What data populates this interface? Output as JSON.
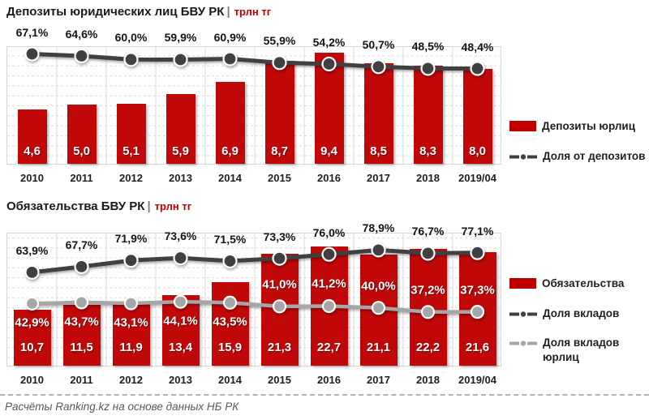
{
  "ui": {
    "title_separator": "|",
    "colors": {
      "bar_red": "#c10808",
      "legend_swatch_red": "#c00000",
      "line_dark": "#404040",
      "line_gray": "#a6a6a6",
      "unit_red": "#c00000",
      "text_dark": "#1a1a1a",
      "footer_gray": "#555a60"
    }
  },
  "chart_data": [
    {
      "type": "bar",
      "title": "Депозиты юридических лиц БВУ РК",
      "unit": "трлн тг",
      "legend_position": "right",
      "grid": true,
      "categories": [
        "2010",
        "2011",
        "2012",
        "2013",
        "2014",
        "2015",
        "2016",
        "2017",
        "2018",
        "2019/04"
      ],
      "bar_axis": {
        "min": 0,
        "max": 10
      },
      "bar_series": {
        "name": "Депозиты юрлиц",
        "color": "#c10808",
        "values": [
          4.6,
          5.0,
          5.1,
          5.9,
          6.9,
          8.7,
          9.4,
          8.5,
          8.3,
          8.0
        ],
        "labels": [
          "4,6",
          "5,0",
          "5,1",
          "5,9",
          "6,9",
          "8,7",
          "9,4",
          "8,5",
          "8,3",
          "8,0"
        ]
      },
      "line_series": [
        {
          "name": "Доля от депозитов",
          "color": "#404040",
          "marker_r": 8,
          "stroke_w": 5,
          "axis": {
            "min": -76,
            "max": 76
          },
          "label_style": "dark",
          "values": [
            67.1,
            64.6,
            60.0,
            59.9,
            60.9,
            55.9,
            54.2,
            50.7,
            48.5,
            48.4
          ],
          "labels": [
            "67,1%",
            "64,6%",
            "60,0%",
            "59,9%",
            "60,9%",
            "55,9%",
            "54,2%",
            "50,7%",
            "48,5%",
            "48,4%"
          ]
        }
      ]
    },
    {
      "type": "bar",
      "title": "Обязательства БВУ РК",
      "unit": "трлн тг",
      "legend_position": "right",
      "grid": true,
      "categories": [
        "2010",
        "2011",
        "2012",
        "2013",
        "2014",
        "2015",
        "2016",
        "2017",
        "2018",
        "2019/04"
      ],
      "bar_axis": {
        "min": 0,
        "max": 25.4
      },
      "bar_series": {
        "name": "Обязательства",
        "color": "#c10808",
        "values": [
          10.7,
          11.5,
          11.9,
          13.4,
          15.9,
          21.3,
          22.7,
          21.1,
          22.2,
          21.6
        ],
        "labels": [
          "10,7",
          "11,5",
          "11,9",
          "13,4",
          "15,9",
          "21,3",
          "22,7",
          "21,1",
          "22,2",
          "21,6"
        ]
      },
      "line_series": [
        {
          "name": "Доля вкладов",
          "color": "#404040",
          "marker_r": 8,
          "stroke_w": 5,
          "axis": {
            "min": 0,
            "max": 90
          },
          "label_style": "dark",
          "values": [
            63.9,
            67.7,
            71.9,
            73.6,
            71.5,
            73.3,
            76.0,
            78.9,
            76.7,
            77.1
          ],
          "labels": [
            "63,9%",
            "67,7%",
            "71,9%",
            "73,6%",
            "71,5%",
            "73,3%",
            "76,0%",
            "78,9%",
            "76,7%",
            "77,1%"
          ]
        },
        {
          "name": "Доля вкладов юрлиц",
          "color": "#a6a6a6",
          "marker_r": 7.5,
          "stroke_w": 4.5,
          "axis": {
            "min": 0,
            "max": 90
          },
          "label_style": "white",
          "values": [
            42.9,
            43.7,
            43.1,
            44.1,
            43.5,
            41.0,
            41.2,
            40.0,
            37.2,
            37.3
          ],
          "labels": [
            "42,9%",
            "43,7%",
            "43,1%",
            "44,1%",
            "43,5%",
            "41,0%",
            "41,2%",
            "40,0%",
            "37,2%",
            "37,3%"
          ],
          "label_pos": [
            "below",
            "below",
            "below",
            "below",
            "below",
            "above",
            "above",
            "above",
            "above",
            "above"
          ]
        }
      ]
    }
  ],
  "footer": {
    "source_text": "Расчёты Ranking.kz на основе данных НБ РК"
  }
}
